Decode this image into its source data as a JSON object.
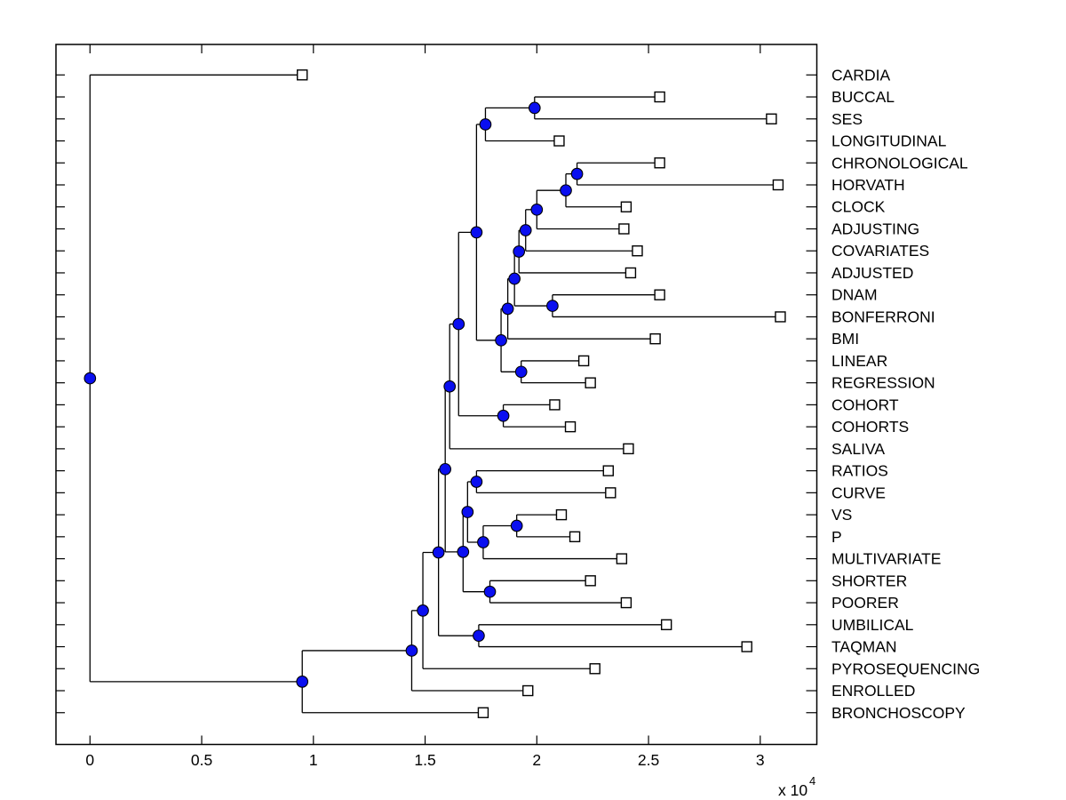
{
  "figure": {
    "background": "#ffffff"
  },
  "chart_data": {
    "type": "dendrogram",
    "orientation": "horizontal-root-left",
    "title": "",
    "xlabel": "",
    "ylabel": "",
    "grid": false,
    "x_unit_multiplier_label": {
      "prefix": "x 10",
      "exponent": "4"
    },
    "x_tick_values": [
      0,
      0.5,
      1,
      1.5,
      2,
      2.5,
      3
    ],
    "x_tick_labels": [
      "0",
      "0.5",
      "1",
      "1.5",
      "2",
      "2.5",
      "3"
    ],
    "xlim": [
      -0.15,
      3.25
    ],
    "markers": {
      "leaf": "open-square",
      "internal": "filled-circle"
    },
    "colors": {
      "line": "#000000",
      "axis": "#000000",
      "text": "#000000",
      "node_fill": "#0a0ff0",
      "node_edge": "#000000",
      "leaf_fill": "#ffffff",
      "leaf_edge": "#000000",
      "background": "#ffffff"
    },
    "leaves": [
      {
        "label": "CARDIA",
        "x": 0.95
      },
      {
        "label": "BUCCAL",
        "x": 2.55
      },
      {
        "label": "SES",
        "x": 3.05
      },
      {
        "label": "LONGITUDINAL",
        "x": 2.1
      },
      {
        "label": "CHRONOLOGICAL",
        "x": 2.55
      },
      {
        "label": "HORVATH",
        "x": 3.08
      },
      {
        "label": "CLOCK",
        "x": 2.4
      },
      {
        "label": "ADJUSTING",
        "x": 2.39
      },
      {
        "label": "COVARIATES",
        "x": 2.45
      },
      {
        "label": "ADJUSTED",
        "x": 2.42
      },
      {
        "label": "DNAM",
        "x": 2.55
      },
      {
        "label": "BONFERRONI",
        "x": 3.09
      },
      {
        "label": "BMI",
        "x": 2.53
      },
      {
        "label": "LINEAR",
        "x": 2.21
      },
      {
        "label": "REGRESSION",
        "x": 2.24
      },
      {
        "label": "COHORT",
        "x": 2.08
      },
      {
        "label": "COHORTS",
        "x": 2.15
      },
      {
        "label": "SALIVA",
        "x": 2.41
      },
      {
        "label": "RATIOS",
        "x": 2.32
      },
      {
        "label": "CURVE",
        "x": 2.33
      },
      {
        "label": "VS",
        "x": 2.11
      },
      {
        "label": "P",
        "x": 2.17
      },
      {
        "label": "MULTIVARIATE",
        "x": 2.38
      },
      {
        "label": "SHORTER",
        "x": 2.24
      },
      {
        "label": "POORER",
        "x": 2.4
      },
      {
        "label": "UMBILICAL",
        "x": 2.58
      },
      {
        "label": "TAQMAN",
        "x": 2.94
      },
      {
        "label": "PYROSEQUENCING",
        "x": 2.26
      },
      {
        "label": "ENROLLED",
        "x": 1.96
      },
      {
        "label": "BRONCHOSCOPY",
        "x": 1.76
      }
    ],
    "links": [
      {
        "id": "L1",
        "children": [
          "BUCCAL",
          "SES"
        ],
        "x": 1.99
      },
      {
        "id": "L2",
        "children": [
          "L1",
          "LONGITUDINAL"
        ],
        "x": 1.77
      },
      {
        "id": "L3",
        "children": [
          "CHRONOLOGICAL",
          "HORVATH"
        ],
        "x": 2.18
      },
      {
        "id": "L4",
        "children": [
          "L3",
          "CLOCK"
        ],
        "x": 2.13
      },
      {
        "id": "L5",
        "children": [
          "L4",
          "ADJUSTING"
        ],
        "x": 2.0
      },
      {
        "id": "L6",
        "children": [
          "L5",
          "COVARIATES"
        ],
        "x": 1.95
      },
      {
        "id": "L7",
        "children": [
          "L6",
          "ADJUSTED"
        ],
        "x": 1.92
      },
      {
        "id": "L8",
        "children": [
          "DNAM",
          "BONFERRONI"
        ],
        "x": 2.07
      },
      {
        "id": "L9",
        "children": [
          "L7",
          "L8"
        ],
        "x": 1.9
      },
      {
        "id": "L10",
        "children": [
          "L9",
          "BMI"
        ],
        "x": 1.87
      },
      {
        "id": "L11",
        "children": [
          "LINEAR",
          "REGRESSION"
        ],
        "x": 1.93
      },
      {
        "id": "L12",
        "children": [
          "L10",
          "L11"
        ],
        "x": 1.84
      },
      {
        "id": "L13",
        "children": [
          "L2",
          "L12"
        ],
        "x": 1.73
      },
      {
        "id": "L14",
        "children": [
          "COHORT",
          "COHORTS"
        ],
        "x": 1.85
      },
      {
        "id": "L15",
        "children": [
          "L13",
          "L14"
        ],
        "x": 1.65
      },
      {
        "id": "L16",
        "children": [
          "L15",
          "SALIVA"
        ],
        "x": 1.61
      },
      {
        "id": "L17",
        "children": [
          "RATIOS",
          "CURVE"
        ],
        "x": 1.73
      },
      {
        "id": "L18",
        "children": [
          "VS",
          "P"
        ],
        "x": 1.91
      },
      {
        "id": "L19",
        "children": [
          "L18",
          "MULTIVARIATE"
        ],
        "x": 1.76
      },
      {
        "id": "L20",
        "children": [
          "L17",
          "L19"
        ],
        "x": 1.69
      },
      {
        "id": "L21",
        "children": [
          "SHORTER",
          "POORER"
        ],
        "x": 1.79
      },
      {
        "id": "L22",
        "children": [
          "L20",
          "L21"
        ],
        "x": 1.67
      },
      {
        "id": "L23",
        "children": [
          "L16",
          "L22"
        ],
        "x": 1.59
      },
      {
        "id": "L24",
        "children": [
          "UMBILICAL",
          "TAQMAN"
        ],
        "x": 1.74
      },
      {
        "id": "L25",
        "children": [
          "L23",
          "L24"
        ],
        "x": 1.56
      },
      {
        "id": "L26",
        "children": [
          "L25",
          "PYROSEQUENCING"
        ],
        "x": 1.49
      },
      {
        "id": "L27",
        "children": [
          "L26",
          "ENROLLED"
        ],
        "x": 1.44
      },
      {
        "id": "L28",
        "children": [
          "L27",
          "BRONCHOSCOPY"
        ],
        "x": 0.95
      },
      {
        "id": "L29",
        "children": [
          "CARDIA",
          "L28"
        ],
        "x": 0.0
      }
    ]
  }
}
